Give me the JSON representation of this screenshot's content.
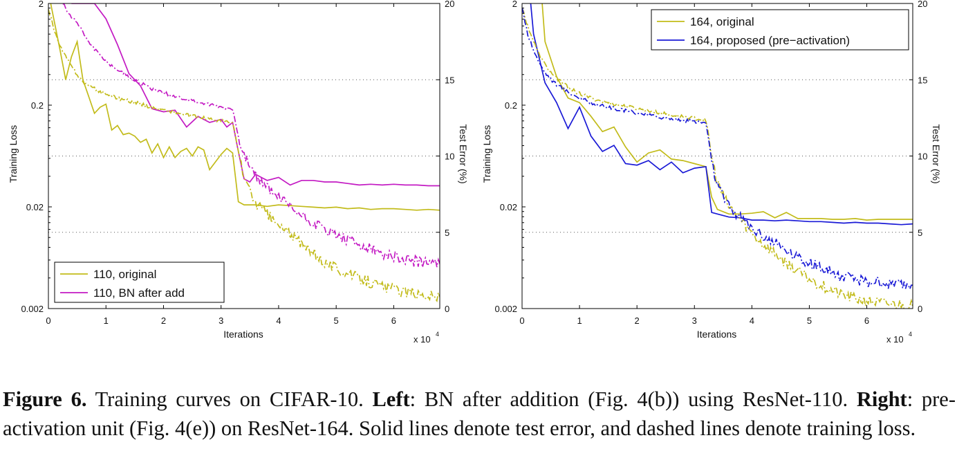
{
  "chart_data": [
    {
      "type": "line",
      "xlabel": "Iterations",
      "x_multiplier": "x 10",
      "x_multiplier_exp": "4",
      "ylabel_left": "Training Loss",
      "ylabel_right": "Test Error (%)",
      "xlim": [
        0,
        68000
      ],
      "ylim_left": [
        0.002,
        2
      ],
      "yscale_left": "log",
      "ylim_right": [
        0,
        20
      ],
      "x_ticks": [
        0,
        10000,
        20000,
        30000,
        40000,
        50000,
        60000
      ],
      "x_tick_labels": [
        "0",
        "1",
        "2",
        "3",
        "4",
        "5",
        "6"
      ],
      "y_left_ticks": [
        0.002,
        0.02,
        0.2,
        2
      ],
      "y_left_tick_labels": [
        "0.002",
        "0.02",
        "0.2",
        "2"
      ],
      "y_right_ticks": [
        0,
        5,
        10,
        15,
        20
      ],
      "y_right_tick_labels": [
        "0",
        "5",
        "10",
        "15",
        "20"
      ],
      "grid": "dotted horizontal at right-axis ticks",
      "legend_position": "bottom-left",
      "series": [
        {
          "name": "110, original",
          "color": "#c2bb1a",
          "style": "solid",
          "axis": "right",
          "metric": "test error",
          "x": [
            400,
            2000,
            3000,
            4000,
            5000,
            6000,
            7000,
            8000,
            9000,
            10000,
            11000,
            12000,
            13000,
            14000,
            15000,
            16000,
            17000,
            18000,
            19000,
            20000,
            21000,
            22000,
            23000,
            24000,
            25000,
            26000,
            27000,
            28000,
            29000,
            30000,
            31000,
            32000,
            33000,
            34000,
            36000,
            38000,
            40000,
            42000,
            44000,
            46000,
            48000,
            50000,
            52000,
            54000,
            56000,
            58000,
            60000,
            62000,
            64000,
            66000,
            68000
          ],
          "y": [
            20,
            17,
            15,
            16.5,
            17.5,
            15,
            13.9,
            12.8,
            13.2,
            13.4,
            11.7,
            12,
            11.4,
            11.5,
            11.3,
            10.9,
            11.1,
            10.2,
            10.8,
            9.9,
            10.6,
            9.9,
            10.3,
            10.5,
            10.0,
            10.6,
            10.4,
            9.1,
            9.6,
            10.1,
            10.5,
            10.2,
            7.0,
            6.8,
            6.8,
            6.7,
            6.8,
            6.75,
            6.7,
            6.65,
            6.6,
            6.65,
            6.55,
            6.6,
            6.5,
            6.55,
            6.55,
            6.5,
            6.45,
            6.5,
            6.45
          ]
        },
        {
          "name": "110, BN after add",
          "color": "#c31ac3",
          "style": "solid",
          "axis": "right",
          "metric": "test error",
          "x": [
            4000,
            8000,
            10000,
            12000,
            14000,
            16000,
            18000,
            20000,
            22000,
            24000,
            26000,
            28000,
            30000,
            31000,
            32000,
            33000,
            34000,
            35000,
            36000,
            38000,
            40000,
            42000,
            44000,
            46000,
            48000,
            50000,
            52000,
            54000,
            56000,
            58000,
            60000,
            62000,
            64000,
            66000,
            68000
          ],
          "y": [
            20,
            20,
            19,
            17.3,
            15.4,
            14.6,
            13.1,
            12.9,
            13.0,
            11.9,
            12.6,
            12.2,
            12.4,
            11.9,
            12.2,
            10.3,
            8.5,
            8.3,
            8.8,
            8.4,
            8.6,
            8.1,
            8.4,
            8.4,
            8.3,
            8.3,
            8.2,
            8.1,
            8.15,
            8.1,
            8.15,
            8.1,
            8.1,
            8.05,
            8.05
          ]
        },
        {
          "name": "110, original (training loss)",
          "color": "#c2bb1a",
          "style": "dashed",
          "axis": "left",
          "metric": "training loss",
          "x": [
            0,
            1000,
            2000,
            3000,
            4000,
            5000,
            6000,
            7000,
            8000,
            9000,
            10000,
            12000,
            14000,
            16000,
            18000,
            20000,
            22000,
            24000,
            26000,
            28000,
            30000,
            31000,
            32000,
            32500,
            33000,
            34000,
            35000,
            36000,
            38000,
            40000,
            42000,
            44000,
            46000,
            48000,
            50000,
            52000,
            54000,
            56000,
            58000,
            60000,
            62000,
            64000,
            66000,
            68000
          ],
          "y": [
            1.8,
            1.1,
            0.75,
            0.6,
            0.48,
            0.4,
            0.34,
            0.31,
            0.29,
            0.27,
            0.26,
            0.235,
            0.22,
            0.205,
            0.19,
            0.18,
            0.17,
            0.16,
            0.152,
            0.146,
            0.14,
            0.137,
            0.133,
            0.1,
            0.07,
            0.04,
            0.028,
            0.022,
            0.017,
            0.013,
            0.011,
            0.0085,
            0.007,
            0.0058,
            0.005,
            0.0044,
            0.004,
            0.0036,
            0.0033,
            0.0031,
            0.0029,
            0.0028,
            0.0027,
            0.0026
          ]
        },
        {
          "name": "110, BN after add (training loss)",
          "color": "#c31ac3",
          "style": "dashed",
          "axis": "left",
          "metric": "training loss",
          "x": [
            2500,
            3500,
            5000,
            6000,
            7000,
            8000,
            9000,
            10000,
            12000,
            14000,
            16000,
            18000,
            20000,
            22000,
            24000,
            26000,
            28000,
            30000,
            31000,
            32000,
            32500,
            33000,
            34000,
            35000,
            36000,
            38000,
            40000,
            42000,
            44000,
            46000,
            48000,
            50000,
            52000,
            54000,
            56000,
            58000,
            60000,
            62000,
            64000,
            66000,
            68000
          ],
          "y": [
            2,
            1.6,
            1.3,
            1.05,
            0.85,
            0.72,
            0.62,
            0.54,
            0.45,
            0.38,
            0.33,
            0.29,
            0.265,
            0.245,
            0.228,
            0.214,
            0.202,
            0.192,
            0.187,
            0.182,
            0.14,
            0.1,
            0.065,
            0.048,
            0.04,
            0.031,
            0.025,
            0.02,
            0.0165,
            0.014,
            0.012,
            0.0105,
            0.0093,
            0.0083,
            0.0076,
            0.007,
            0.0065,
            0.0061,
            0.0058,
            0.0056,
            0.0055
          ]
        }
      ],
      "legend_entries": [
        "110, original",
        "110, BN after add"
      ]
    },
    {
      "type": "line",
      "xlabel": "Iterations",
      "x_multiplier": "x 10",
      "x_multiplier_exp": "4",
      "ylabel_left": "Training Loss",
      "ylabel_right": "Test Error (%)",
      "xlim": [
        0,
        68000
      ],
      "ylim_left": [
        0.002,
        2
      ],
      "yscale_left": "log",
      "ylim_right": [
        0,
        20
      ],
      "x_ticks": [
        0,
        10000,
        20000,
        30000,
        40000,
        50000,
        60000
      ],
      "x_tick_labels": [
        "0",
        "1",
        "2",
        "3",
        "4",
        "5",
        "6"
      ],
      "y_left_ticks": [
        0.002,
        0.02,
        0.2,
        2
      ],
      "y_left_tick_labels": [
        "0.002",
        "0.02",
        "0.2",
        "2"
      ],
      "y_right_ticks": [
        0,
        5,
        10,
        15,
        20
      ],
      "y_right_tick_labels": [
        "0",
        "5",
        "10",
        "15",
        "20"
      ],
      "grid": "dotted horizontal at right-axis ticks",
      "legend_position": "top-right",
      "series": [
        {
          "name": "164, original",
          "color": "#c2bb1a",
          "style": "solid",
          "axis": "right",
          "metric": "test error",
          "x": [
            3500,
            4000,
            6000,
            8000,
            10000,
            12000,
            14000,
            16000,
            18000,
            20000,
            22000,
            24000,
            26000,
            28000,
            30000,
            32000,
            33000,
            34000,
            36000,
            38000,
            40000,
            42000,
            44000,
            46000,
            48000,
            50000,
            52000,
            54000,
            56000,
            58000,
            60000,
            62000,
            64000,
            66000,
            68000
          ],
          "y": [
            20,
            17.5,
            15.2,
            13.8,
            13.5,
            12.6,
            11.6,
            11.9,
            10.6,
            9.6,
            10.2,
            10.4,
            9.8,
            9.7,
            9.5,
            9.3,
            7.3,
            6.5,
            6.2,
            6.2,
            6.25,
            6.35,
            5.95,
            6.3,
            5.9,
            5.9,
            5.9,
            5.85,
            5.85,
            5.9,
            5.8,
            5.85,
            5.85,
            5.85,
            5.85
          ]
        },
        {
          "name": "164, proposed (pre−activation)",
          "color": "#1a1ad6",
          "style": "solid",
          "axis": "right",
          "metric": "test error",
          "x": [
            1500,
            2000,
            4000,
            6000,
            8000,
            10000,
            12000,
            14000,
            16000,
            18000,
            20000,
            22000,
            24000,
            26000,
            28000,
            30000,
            32000,
            33000,
            34000,
            36000,
            38000,
            40000,
            42000,
            44000,
            46000,
            48000,
            50000,
            52000,
            54000,
            56000,
            58000,
            60000,
            62000,
            64000,
            66000,
            68000
          ],
          "y": [
            20,
            18,
            14.8,
            13.5,
            11.8,
            13.2,
            11.3,
            10.3,
            10.7,
            9.5,
            9.4,
            9.7,
            9.1,
            9.6,
            8.9,
            9.2,
            9.3,
            6.3,
            6.2,
            6.0,
            5.95,
            5.8,
            5.8,
            5.75,
            5.8,
            5.75,
            5.7,
            5.7,
            5.65,
            5.6,
            5.65,
            5.6,
            5.6,
            5.55,
            5.5,
            5.55
          ]
        },
        {
          "name": "164, original (training loss)",
          "color": "#c2bb1a",
          "style": "dashed",
          "axis": "left",
          "metric": "training loss",
          "x": [
            0,
            1000,
            2000,
            3000,
            4000,
            5000,
            6000,
            8000,
            10000,
            12000,
            14000,
            16000,
            18000,
            20000,
            22000,
            24000,
            26000,
            28000,
            30000,
            31000,
            32000,
            32500,
            33000,
            34000,
            35000,
            36000,
            38000,
            40000,
            42000,
            44000,
            46000,
            48000,
            50000,
            52000,
            54000,
            56000,
            58000,
            60000,
            62000,
            64000,
            66000,
            68000
          ],
          "y": [
            1.8,
            1.2,
            0.85,
            0.62,
            0.5,
            0.42,
            0.37,
            0.3,
            0.26,
            0.235,
            0.218,
            0.205,
            0.195,
            0.185,
            0.176,
            0.168,
            0.16,
            0.154,
            0.148,
            0.146,
            0.143,
            0.1,
            0.06,
            0.035,
            0.025,
            0.02,
            0.015,
            0.011,
            0.0085,
            0.007,
            0.0056,
            0.0046,
            0.0039,
            0.0034,
            0.003,
            0.0027,
            0.0025,
            0.0024,
            0.0023,
            0.0022,
            0.0022,
            0.0021
          ]
        },
        {
          "name": "164, proposed (pre−activation) (training loss)",
          "color": "#1a1ad6",
          "style": "dashed",
          "axis": "left",
          "metric": "training loss",
          "x": [
            0,
            1000,
            2000,
            3000,
            4000,
            5000,
            6000,
            8000,
            10000,
            12000,
            14000,
            16000,
            18000,
            20000,
            22000,
            24000,
            26000,
            28000,
            30000,
            31000,
            32000,
            32500,
            33000,
            34000,
            35000,
            36000,
            38000,
            40000,
            42000,
            44000,
            46000,
            48000,
            50000,
            52000,
            54000,
            56000,
            58000,
            60000,
            62000,
            64000,
            66000,
            68000
          ],
          "y": [
            1.8,
            1.0,
            0.7,
            0.52,
            0.42,
            0.36,
            0.32,
            0.27,
            0.235,
            0.212,
            0.196,
            0.185,
            0.176,
            0.168,
            0.16,
            0.153,
            0.147,
            0.142,
            0.138,
            0.136,
            0.134,
            0.09,
            0.055,
            0.033,
            0.025,
            0.02,
            0.016,
            0.0125,
            0.0105,
            0.0088,
            0.0075,
            0.0064,
            0.0056,
            0.005,
            0.0045,
            0.0041,
            0.0039,
            0.0037,
            0.0036,
            0.0035,
            0.0034,
            0.0034
          ]
        }
      ],
      "legend_entries": [
        "164, original",
        "164, proposed (pre−activation)"
      ]
    }
  ],
  "caption": {
    "label": "Figure 6.",
    "text1": " Training curves on CIFAR-10. ",
    "left_bold": "Left",
    "text2": ": BN after addition (Fig. 4(b)) using ResNet-110. ",
    "right_bold": "Right",
    "text3": ": pre-activation unit (Fig. 4(e)) on ResNet-164. Solid lines denote test error, and dashed lines denote training loss."
  }
}
